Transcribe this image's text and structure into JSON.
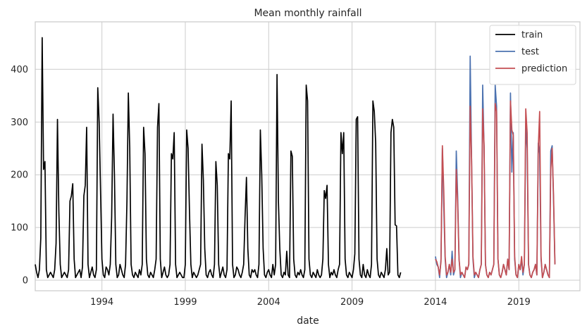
{
  "chart_data": {
    "type": "line",
    "title": "Mean monthly rainfall",
    "xlabel": "date",
    "ylabel": "",
    "x_axis": "monthly dates, January 1990 to around September 2022",
    "xlim": [
      "1990-01",
      "2022-09"
    ],
    "ylim": [
      -20,
      490
    ],
    "x_ticks": [
      "1994",
      "1999",
      "2004",
      "2009",
      "2014",
      "2019"
    ],
    "y_ticks": [
      0,
      100,
      200,
      300,
      400
    ],
    "grid": true,
    "legend_position": "top-right",
    "series": [
      {
        "name": "train",
        "color": "#000000",
        "start": "1990-01",
        "values": [
          30,
          15,
          5,
          20,
          80,
          460,
          210,
          225,
          20,
          5,
          10,
          15,
          10,
          5,
          20,
          70,
          305,
          130,
          30,
          5,
          10,
          15,
          10,
          5,
          20,
          150,
          160,
          183,
          40,
          5,
          10,
          15,
          20,
          5,
          25,
          160,
          180,
          290,
          30,
          5,
          15,
          25,
          10,
          5,
          20,
          365,
          300,
          170,
          40,
          10,
          5,
          25,
          20,
          10,
          30,
          120,
          315,
          200,
          30,
          5,
          10,
          30,
          20,
          10,
          5,
          30,
          150,
          355,
          250,
          30,
          10,
          5,
          15,
          10,
          5,
          20,
          10,
          30,
          290,
          240,
          40,
          10,
          5,
          15,
          10,
          5,
          20,
          40,
          290,
          335,
          40,
          5,
          15,
          25,
          10,
          5,
          10,
          30,
          240,
          230,
          280,
          30,
          5,
          10,
          15,
          10,
          5,
          5,
          30,
          285,
          250,
          130,
          30,
          5,
          15,
          10,
          5,
          10,
          20,
          30,
          258,
          190,
          60,
          10,
          5,
          15,
          20,
          10,
          5,
          30,
          225,
          180,
          30,
          5,
          15,
          25,
          10,
          5,
          20,
          240,
          230,
          340,
          30,
          5,
          10,
          25,
          20,
          10,
          5,
          15,
          30,
          120,
          195,
          60,
          10,
          5,
          20,
          15,
          20,
          10,
          5,
          30,
          285,
          200,
          60,
          10,
          5,
          15,
          20,
          10,
          5,
          30,
          10,
          30,
          390,
          150,
          60,
          10,
          5,
          15,
          10,
          55,
          10,
          5,
          245,
          235,
          40,
          10,
          5,
          15,
          10,
          20,
          10,
          5,
          20,
          370,
          340,
          40,
          10,
          5,
          15,
          10,
          5,
          20,
          10,
          5,
          10,
          40,
          170,
          155,
          180,
          30,
          5,
          15,
          10,
          20,
          10,
          5,
          20,
          30,
          280,
          240,
          280,
          40,
          10,
          5,
          15,
          10,
          5,
          20,
          50,
          305,
          310,
          40,
          10,
          5,
          30,
          10,
          5,
          20,
          10,
          5,
          30,
          340,
          320,
          260,
          40,
          10,
          5,
          15,
          10,
          5,
          20,
          60,
          10,
          15,
          280,
          305,
          290,
          105,
          103,
          10,
          5,
          15
        ]
      },
      {
        "name": "test",
        "color": "#4c72b0",
        "start": "2014-01",
        "values": [
          45,
          30,
          25,
          5,
          40,
          250,
          140,
          40,
          5,
          15,
          30,
          10,
          55,
          10,
          20,
          245,
          160,
          40,
          5,
          15,
          10,
          5,
          25,
          20,
          30,
          425,
          230,
          40,
          5,
          15,
          10,
          5,
          20,
          30,
          370,
          250,
          30,
          10,
          5,
          15,
          10,
          20,
          30,
          370,
          330,
          40,
          10,
          5,
          15,
          30,
          20,
          10,
          40,
          20,
          355,
          205,
          280,
          40,
          10,
          5,
          30,
          20,
          40,
          10,
          30,
          290,
          250,
          30,
          10,
          5,
          15,
          20,
          30,
          10,
          260,
          240,
          40,
          5,
          15,
          30,
          20,
          10,
          5,
          245,
          255,
          150,
          30
        ]
      },
      {
        "name": "prediction",
        "color": "#c44e52",
        "start": "2014-01",
        "values": [
          40,
          35,
          25,
          10,
          35,
          255,
          170,
          45,
          10,
          15,
          30,
          15,
          40,
          15,
          20,
          210,
          145,
          40,
          10,
          15,
          10,
          5,
          25,
          20,
          30,
          330,
          230,
          45,
          10,
          15,
          10,
          5,
          20,
          30,
          325,
          255,
          30,
          10,
          5,
          15,
          10,
          20,
          30,
          335,
          320,
          40,
          10,
          5,
          15,
          30,
          20,
          10,
          40,
          20,
          340,
          285,
          275,
          45,
          10,
          5,
          30,
          20,
          45,
          15,
          30,
          325,
          280,
          30,
          10,
          5,
          15,
          20,
          30,
          10,
          250,
          320,
          45,
          5,
          15,
          30,
          20,
          10,
          5,
          210,
          250,
          160,
          30
        ]
      }
    ]
  }
}
